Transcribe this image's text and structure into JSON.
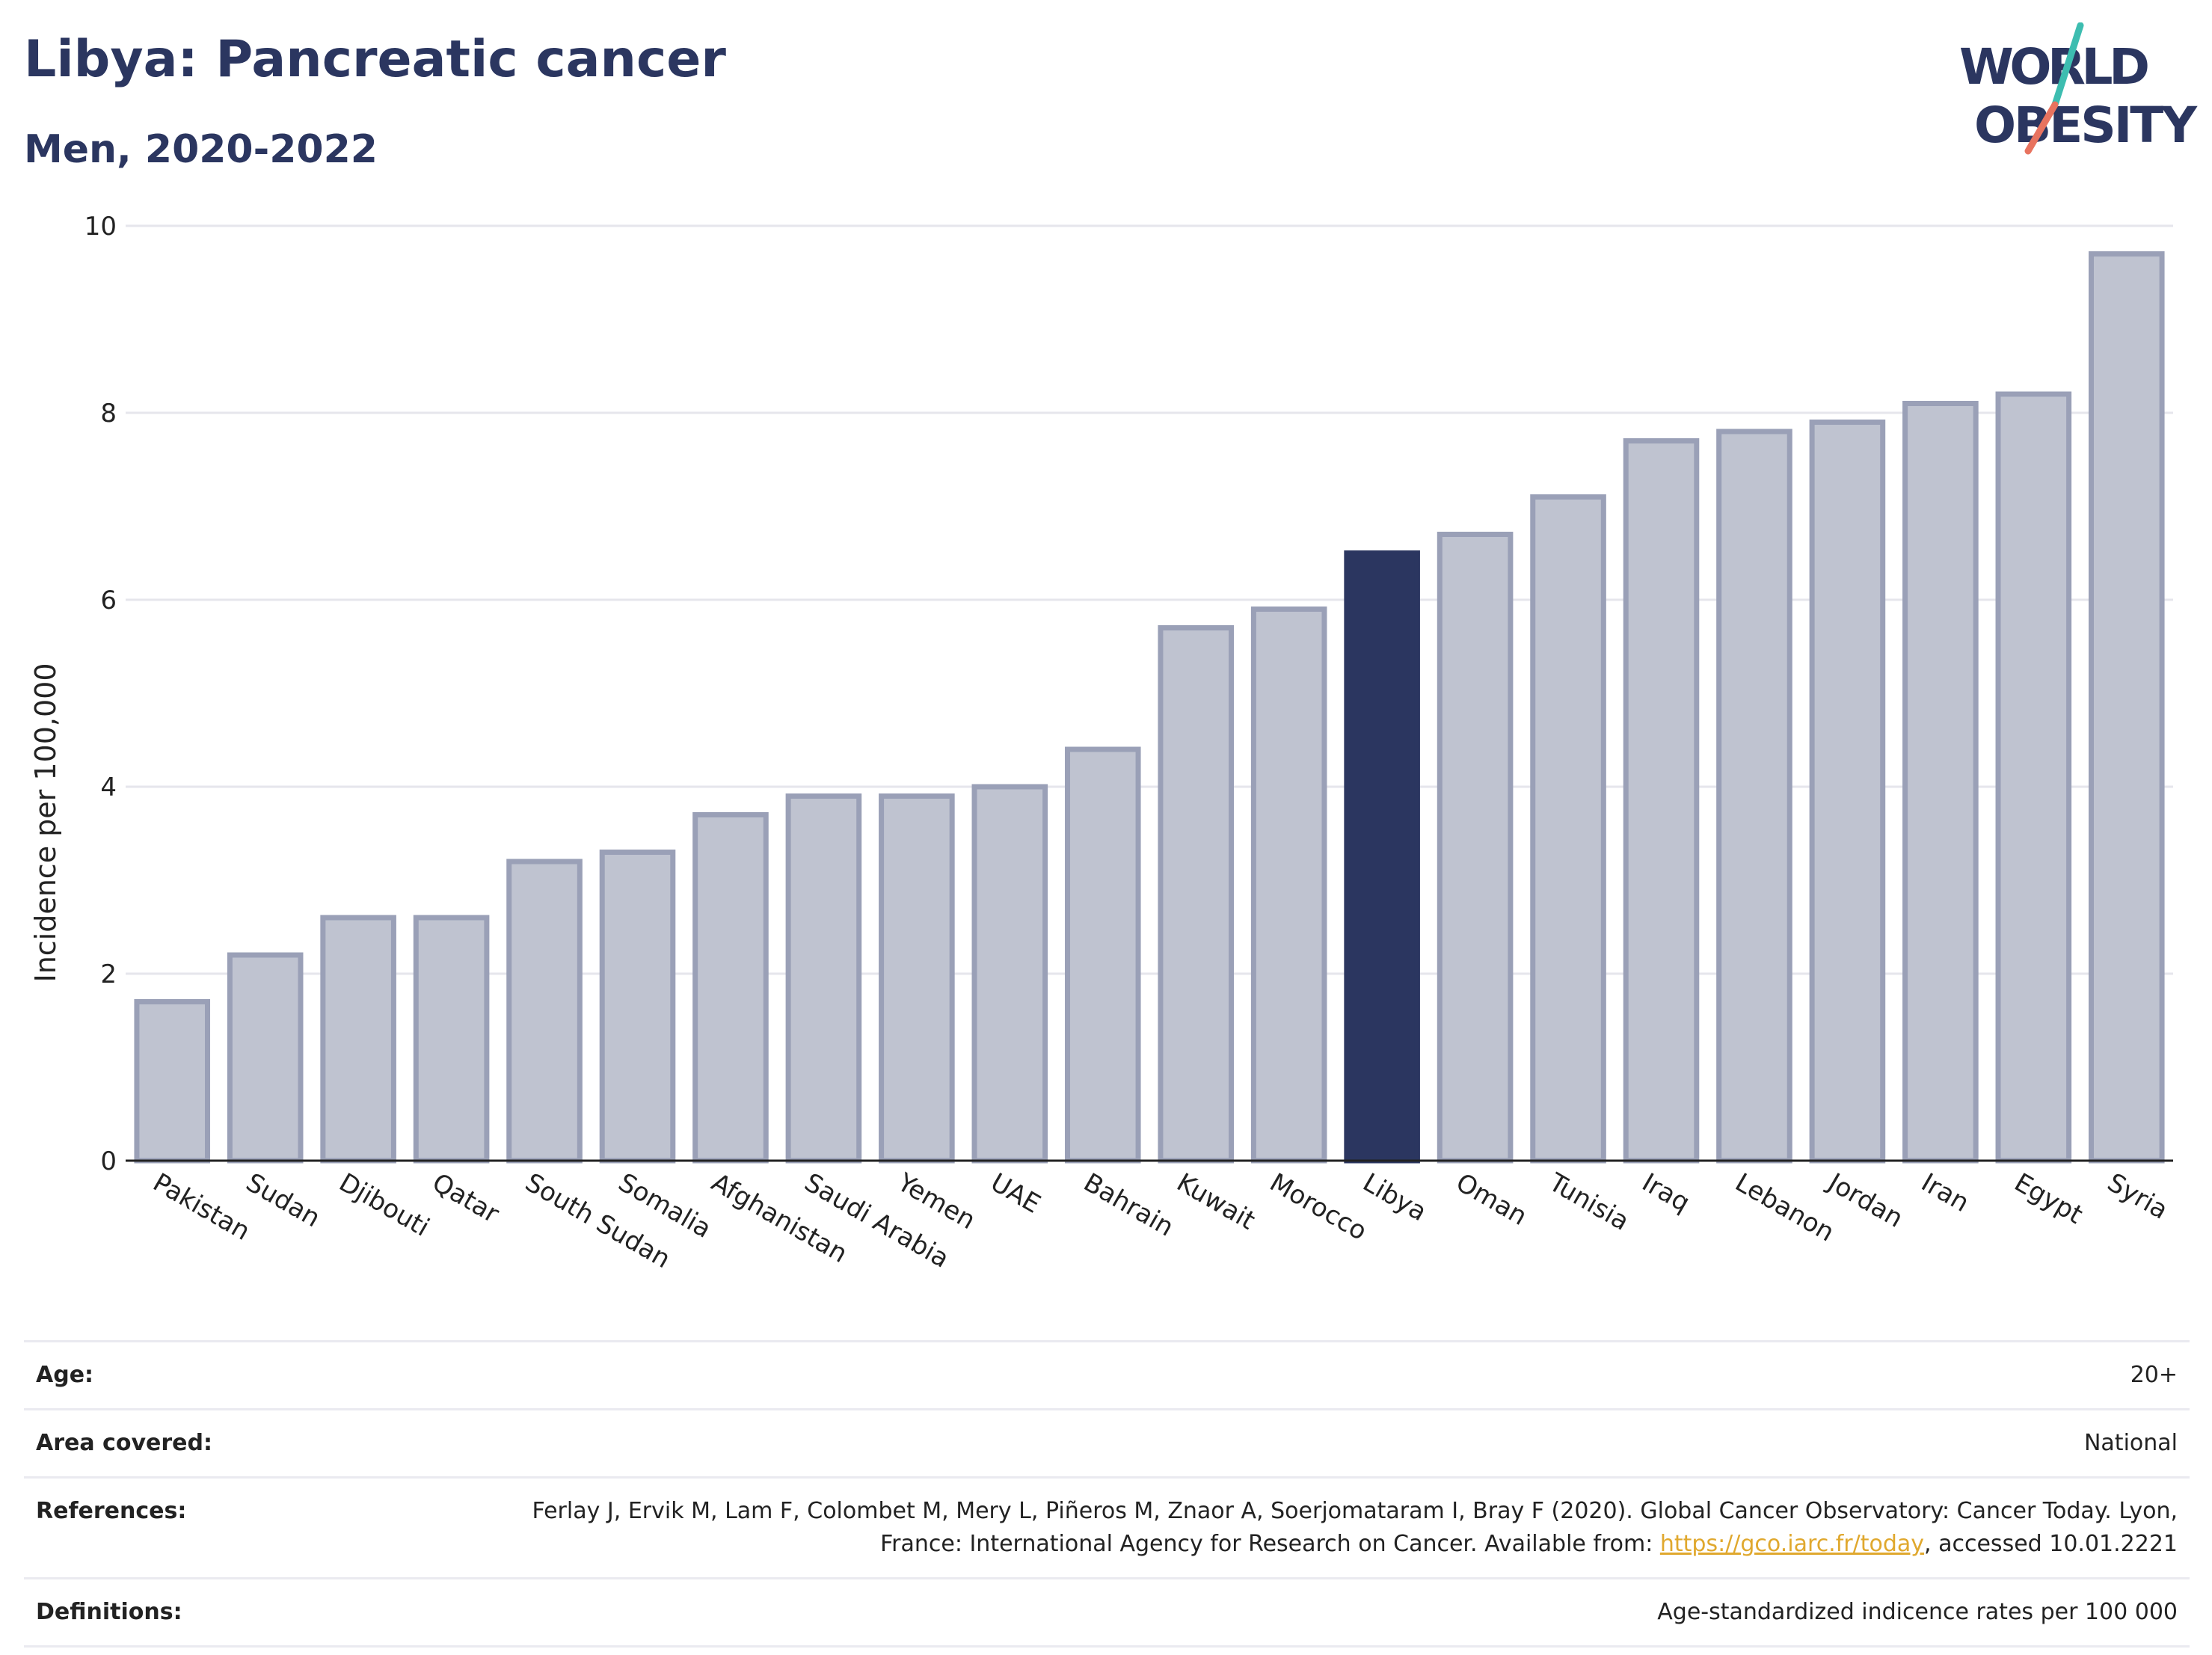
{
  "header": {
    "title": "Libya: Pancreatic cancer",
    "subtitle": "Men, 2020-2022",
    "logo_text_line1": "WORLD",
    "logo_text_line2": "OBESITY"
  },
  "colors": {
    "primary": "#2b3660",
    "bar_default": "#bfc3d0",
    "bar_default_stroke": "#9aa0b7",
    "bar_highlight": "#2b3660",
    "link": "#e0a82e",
    "logo_teal": "#3dbdb0",
    "logo_coral": "#e8735f"
  },
  "chart_data": {
    "type": "bar",
    "categories": [
      "Pakistan",
      "Sudan",
      "Djibouti",
      "Qatar",
      "South Sudan",
      "Somalia",
      "Afghanistan",
      "Saudi Arabia",
      "Yemen",
      "UAE",
      "Bahrain",
      "Kuwait",
      "Morocco",
      "Libya",
      "Oman",
      "Tunisia",
      "Iraq",
      "Lebanon",
      "Jordan",
      "Iran",
      "Egypt",
      "Syria"
    ],
    "values": [
      1.7,
      2.2,
      2.6,
      2.6,
      3.2,
      3.3,
      3.7,
      3.9,
      3.9,
      4.0,
      4.4,
      5.7,
      5.9,
      6.5,
      6.7,
      7.1,
      7.7,
      7.8,
      7.9,
      8.1,
      8.2,
      9.7
    ],
    "highlight": "Libya",
    "ylabel": "Incidence per 100,000",
    "ylim": [
      0,
      10
    ],
    "yticks": [
      0,
      2,
      4,
      6,
      8,
      10
    ],
    "grid": true
  },
  "meta": {
    "age_label": "Age:",
    "age_value": "20+",
    "area_label": "Area covered:",
    "area_value": "National",
    "references_label": "References:",
    "references_text_1": "Ferlay J, Ervik M, Lam F, Colombet M, Mery L, Piñeros M, Znaor A, Soerjomataram I, Bray F (2020). Global Cancer Observatory: Cancer Today. Lyon, France: International Agency for Research on Cancer. Available from: ",
    "references_link": "https://gco.iarc.fr/today",
    "references_text_2": ", accessed 10.01.2221",
    "definitions_label": "Definitions:",
    "definitions_value": "Age-standardized indicence rates per 100 000"
  }
}
